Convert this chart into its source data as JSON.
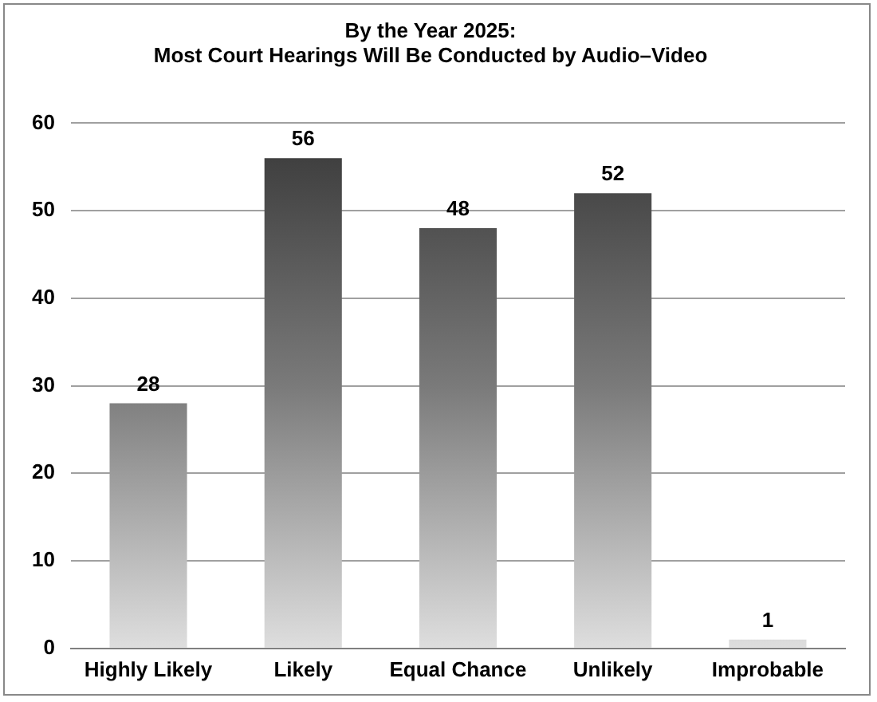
{
  "chart_data": {
    "type": "bar",
    "title": "By the Year 2025:\nMost Court Hearings Will Be Conducted by Audio–Video",
    "categories": [
      "Highly Likely",
      "Likely",
      "Equal Chance",
      "Unlikely",
      "Improbable"
    ],
    "values": [
      28,
      56,
      48,
      52,
      1
    ],
    "color": "#7a7a7a",
    "ylim": [
      0,
      60
    ],
    "yticks": [
      0,
      10,
      20,
      30,
      40,
      50,
      60
    ],
    "grid": "y",
    "data_labels": true,
    "legend": false
  }
}
